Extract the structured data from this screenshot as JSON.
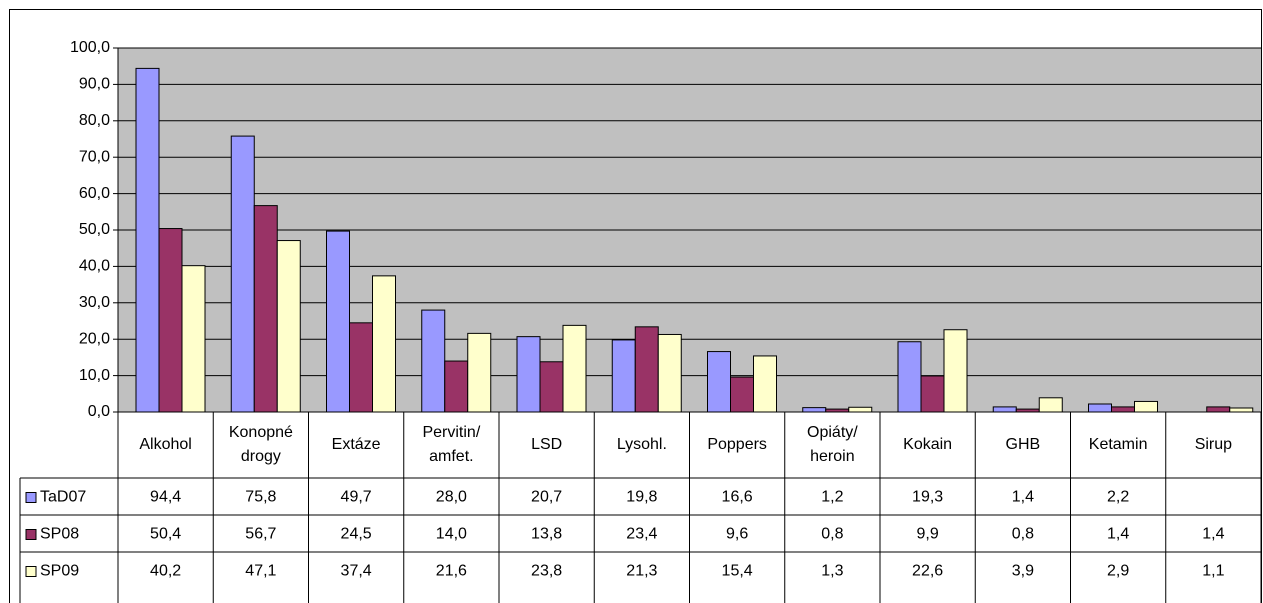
{
  "chart_data": {
    "type": "bar",
    "categories": [
      "Alkohol",
      "Konopné drogy",
      "Extáze",
      "Pervitin/ amfet.",
      "LSD",
      "Lysohl.",
      "Poppers",
      "Opiáty/ heroin",
      "Kokain",
      "GHB",
      "Ketamin",
      "Sirup"
    ],
    "series": [
      {
        "name": "TaD07",
        "color": "#9999ff",
        "values": [
          94.4,
          75.8,
          49.7,
          28.0,
          20.7,
          19.8,
          16.6,
          1.2,
          19.3,
          1.4,
          2.2,
          null
        ],
        "value_labels": [
          "94,4",
          "75,8",
          "49,7",
          "28,0",
          "20,7",
          "19,8",
          "16,6",
          "1,2",
          "19,3",
          "1,4",
          "2,2",
          null
        ]
      },
      {
        "name": "SP08",
        "color": "#993366",
        "values": [
          50.4,
          56.7,
          24.5,
          14.0,
          13.8,
          23.4,
          9.6,
          0.8,
          9.9,
          0.8,
          1.4,
          1.4
        ],
        "value_labels": [
          "50,4",
          "56,7",
          "24,5",
          "14,0",
          "13,8",
          "23,4",
          "9,6",
          "0,8",
          "9,9",
          "0,8",
          "1,4",
          "1,4"
        ]
      },
      {
        "name": "SP09",
        "color": "#ffffcc",
        "values": [
          40.2,
          47.1,
          37.4,
          21.6,
          23.8,
          21.3,
          15.4,
          1.3,
          22.6,
          3.9,
          2.9,
          1.1
        ],
        "value_labels": [
          "40,2",
          "47,1",
          "37,4",
          "21,6",
          "23,8",
          "21,3",
          "15,4",
          "1,3",
          "22,6",
          "3,9",
          "2,9",
          "1,1"
        ]
      }
    ],
    "ylim": [
      0,
      100
    ],
    "yticks": [
      {
        "value": 0,
        "label": "0,0"
      },
      {
        "value": 10,
        "label": "10,0"
      },
      {
        "value": 20,
        "label": "20,0"
      },
      {
        "value": 30,
        "label": "30,0"
      },
      {
        "value": 40,
        "label": "40,0"
      },
      {
        "value": 50,
        "label": "50,0"
      },
      {
        "value": 60,
        "label": "60,0"
      },
      {
        "value": 70,
        "label": "70,0"
      },
      {
        "value": 80,
        "label": "80,0"
      },
      {
        "value": 90,
        "label": "90,0"
      },
      {
        "value": 100,
        "label": "100,0"
      }
    ],
    "grid": true,
    "plot_background": "#c0c0c0"
  }
}
